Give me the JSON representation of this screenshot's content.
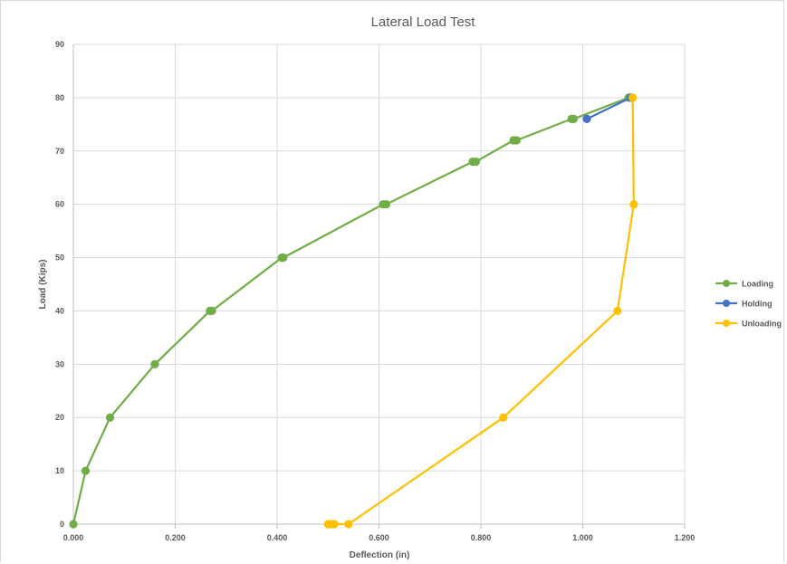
{
  "chart_data": {
    "type": "line",
    "title": "Lateral Load Test",
    "xlabel": "Deflection (in)",
    "ylabel": "Load (Kips)",
    "xlim": [
      0,
      1.2
    ],
    "ylim": [
      0,
      90
    ],
    "xticks": [
      "0.000",
      "0.200",
      "0.400",
      "0.600",
      "0.800",
      "1.000",
      "1.200"
    ],
    "yticks": [
      "0",
      "10",
      "20",
      "30",
      "40",
      "50",
      "60",
      "70",
      "80",
      "90"
    ],
    "grid": true,
    "legend_position": "right",
    "series": [
      {
        "name": "Loading",
        "color": "#70ad47",
        "points": [
          [
            0.0,
            0
          ],
          [
            0.024,
            10
          ],
          [
            0.072,
            20
          ],
          [
            0.16,
            30
          ],
          [
            0.268,
            40
          ],
          [
            0.272,
            40
          ],
          [
            0.409,
            50
          ],
          [
            0.412,
            50
          ],
          [
            0.608,
            60
          ],
          [
            0.614,
            60
          ],
          [
            0.784,
            68
          ],
          [
            0.79,
            68
          ],
          [
            0.864,
            72
          ],
          [
            0.87,
            72
          ],
          [
            0.978,
            76
          ],
          [
            0.982,
            76
          ],
          [
            1.09,
            80
          ],
          [
            1.094,
            80
          ]
        ]
      },
      {
        "name": "Holding",
        "color": "#4472c4",
        "points": [
          [
            1.008,
            76
          ],
          [
            1.094,
            80
          ]
        ]
      },
      {
        "name": "Unloading",
        "color": "#ffc000",
        "points": [
          [
            1.098,
            80
          ],
          [
            1.1,
            60
          ],
          [
            1.068,
            40
          ],
          [
            0.844,
            20
          ],
          [
            0.54,
            0
          ],
          [
            0.512,
            0
          ],
          [
            0.506,
            0
          ],
          [
            0.5,
            0
          ]
        ]
      }
    ]
  }
}
